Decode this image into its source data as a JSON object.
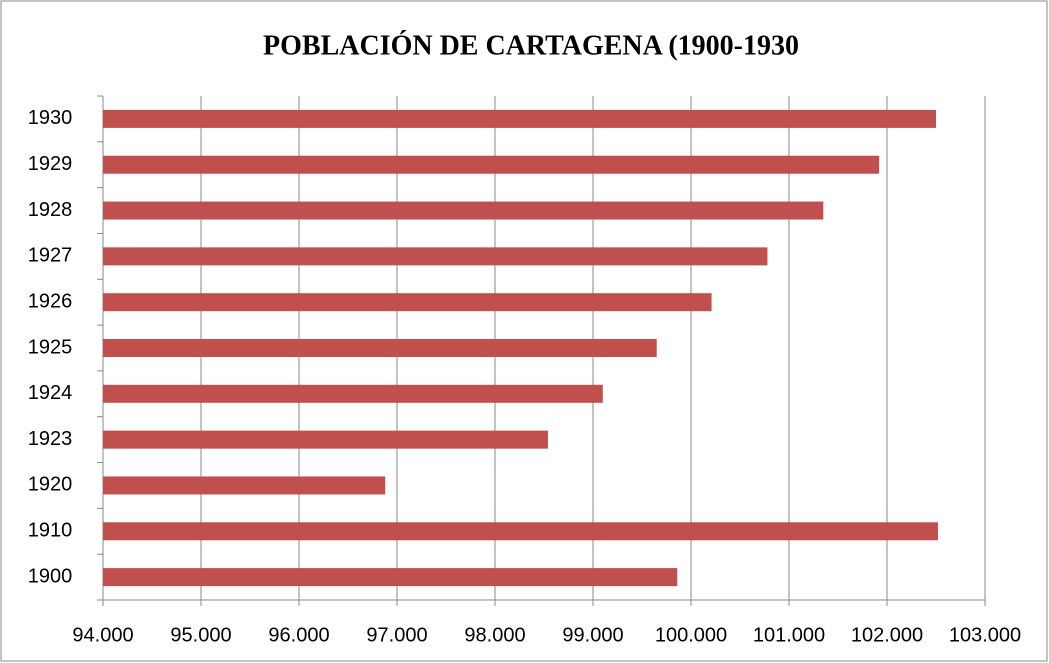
{
  "chart_data": {
    "type": "bar",
    "orientation": "horizontal",
    "title": "POBLACIÓN DE CARTAGENA (1900-1930",
    "categories": [
      "1900",
      "1910",
      "1920",
      "1923",
      "1924",
      "1925",
      "1926",
      "1927",
      "1928",
      "1929",
      "1930"
    ],
    "values": [
      99860,
      102520,
      96880,
      98540,
      99100,
      99650,
      100210,
      100780,
      101350,
      101920,
      102500
    ],
    "color": "#c0504d",
    "xlim": [
      94000,
      103000
    ],
    "xticks": [
      {
        "value": 94000,
        "label": "94.000"
      },
      {
        "value": 95000,
        "label": "95.000"
      },
      {
        "value": 96000,
        "label": "96.000"
      },
      {
        "value": 97000,
        "label": "97.000"
      },
      {
        "value": 98000,
        "label": "98.000"
      },
      {
        "value": 99000,
        "label": "99.000"
      },
      {
        "value": 100000,
        "label": "100.000"
      },
      {
        "value": 101000,
        "label": "101.000"
      },
      {
        "value": 102000,
        "label": "102.000"
      },
      {
        "value": 103000,
        "label": "103.000"
      }
    ],
    "grid": true
  }
}
